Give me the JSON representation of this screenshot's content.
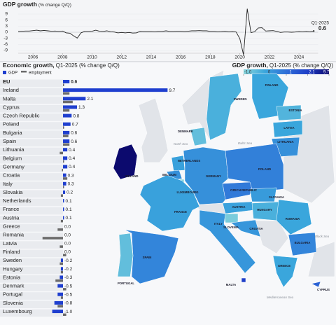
{
  "chart_data": [
    {
      "type": "line",
      "title": "GDP growth",
      "subtitle": "(% change Q/Q)",
      "color": "#222222",
      "x": [
        2005,
        2005.25,
        2005.5,
        2005.75,
        2006,
        2006.25,
        2006.5,
        2006.75,
        2007,
        2007.25,
        2007.5,
        2007.75,
        2008,
        2008.25,
        2008.5,
        2008.75,
        2009,
        2009.25,
        2009.5,
        2009.75,
        2010,
        2010.25,
        2010.5,
        2010.75,
        2011,
        2011.25,
        2011.5,
        2011.75,
        2012,
        2012.25,
        2012.5,
        2012.75,
        2013,
        2013.25,
        2013.5,
        2013.75,
        2014,
        2014.25,
        2014.5,
        2014.75,
        2015,
        2015.25,
        2015.5,
        2015.75,
        2016,
        2016.25,
        2016.5,
        2016.75,
        2017,
        2017.25,
        2017.5,
        2017.75,
        2018,
        2018.25,
        2018.5,
        2018.75,
        2019,
        2019.25,
        2019.5,
        2019.75,
        2020,
        2020.25,
        2020.5,
        2020.75,
        2021,
        2021.25,
        2021.5,
        2021.75,
        2022,
        2022.25,
        2022.5,
        2022.75,
        2023,
        2023.25,
        2023.5,
        2023.75,
        2024,
        2024.25,
        2024.5,
        2024.75,
        2025
      ],
      "values": [
        0.4,
        0.5,
        0.6,
        0.6,
        0.8,
        1.0,
        0.7,
        0.9,
        0.7,
        0.5,
        0.6,
        0.4,
        0.6,
        -0.3,
        -0.5,
        -1.8,
        -2.9,
        -0.3,
        0.4,
        0.4,
        0.5,
        1.0,
        0.5,
        0.4,
        0.7,
        0.2,
        0.1,
        -0.3,
        -0.1,
        -0.3,
        -0.1,
        -0.4,
        -0.3,
        0.4,
        0.3,
        0.3,
        0.3,
        0.2,
        0.4,
        0.4,
        0.7,
        0.4,
        0.4,
        0.5,
        0.5,
        0.3,
        0.5,
        0.7,
        0.7,
        0.8,
        0.7,
        0.7,
        0.4,
        0.4,
        0.2,
        0.3,
        0.5,
        0.2,
        0.3,
        0.1,
        -3.2,
        -11.2,
        11.6,
        -0.2,
        0.2,
        2.1,
        2.2,
        0.6,
        0.7,
        0.8,
        0.4,
        -0.1,
        0.1,
        0.1,
        0.0,
        0.1,
        0.3,
        0.2,
        0.4,
        0.2,
        0.6
      ],
      "xlim": [
        2005,
        2025.3
      ],
      "xticks": [
        2006,
        2008,
        2010,
        2012,
        2014,
        2016,
        2018,
        2020,
        2022,
        2024
      ],
      "ylim": [
        -9,
        9
      ],
      "yticks": [
        9,
        6,
        3,
        0,
        -3,
        -6,
        -9
      ],
      "annotation": "Q1-2025"
    },
    {
      "type": "bar",
      "orientation": "horizontal",
      "title": "Economic growth,",
      "subtitle": "Q1-2025 (% change Q/Q)",
      "categories": [
        "EU",
        "Ireland",
        "Malta",
        "Cyprus",
        "Czech Republic",
        "Poland",
        "Bulgaria",
        "Spain",
        "Lithuania",
        "Belgium",
        "Germany",
        "Croatia",
        "Italy",
        "Slovakia",
        "Netherlands",
        "France",
        "Austria",
        "Greece",
        "Romania",
        "Latvia",
        "Finland",
        "Sweden",
        "Hungary",
        "Estonia",
        "Denmark",
        "Portugal",
        "Slovenia",
        "Luxembourg"
      ],
      "series": [
        {
          "name": "GDP",
          "color": "#1f3fcf",
          "values": [
            0.6,
            9.7,
            2.1,
            1.3,
            0.8,
            0.7,
            0.6,
            0.6,
            0.4,
            0.4,
            0.4,
            0.3,
            0.3,
            0.2,
            0.1,
            0.1,
            0.1,
            0.0,
            0.0,
            0.0,
            0.0,
            -0.2,
            -0.2,
            -0.3,
            -0.5,
            -0.5,
            -0.8,
            -1.0
          ],
          "value_labels": [
            "0.6",
            "9.7",
            "2.1",
            "1.3",
            "0.8",
            "0.7",
            "0.6",
            "0.6",
            "0.4",
            "0.4",
            "0.4",
            "0.3",
            "0.3",
            "0.2",
            "0.1",
            "0.1",
            "0.1",
            "0.0",
            "0.0",
            "0.0",
            "0.0",
            "-0.2",
            "-0.2",
            "-0.3",
            "-0.5",
            "-0.5",
            "-0.8",
            "-1.0"
          ]
        },
        {
          "name": "employment",
          "color": "#6b6b6b",
          "values": [
            0.1,
            0.6,
            0.9,
            0.6,
            0.0,
            0.1,
            0.5,
            0.6,
            -0.3,
            0.1,
            -0.1,
            0.4,
            0.1,
            -0.2,
            0.0,
            0.0,
            -0.2,
            -0.5,
            -1.9,
            -0.3,
            0.3,
            -0.3,
            -0.2,
            -0.7,
            0.3,
            -0.2,
            -0.5,
            0.3
          ]
        }
      ]
    },
    {
      "type": "map",
      "title": "GDP growth,",
      "subtitle": "Q1-2025 (% change Q/Q)",
      "scale_ticks": [
        {
          "value": -1,
          "label": "-1.0"
        },
        0,
        1,
        2.1,
        9.7
      ],
      "scale_colors": [
        "#8ad6dc",
        "#3aa6dc",
        "#2f6fd8",
        "#1f3fc8",
        "#0c0a6e"
      ],
      "regions": [
        {
          "label": "FINLAND",
          "value": 0.0
        },
        {
          "label": "SWEDEN",
          "value": -0.2
        },
        {
          "label": "ESTONIA",
          "value": -0.3
        },
        {
          "label": "LATVIA",
          "value": 0.0
        },
        {
          "label": "LITHUANIA",
          "value": 0.4
        },
        {
          "label": "DENMARK",
          "value": -0.5
        },
        {
          "label": "IRELAND",
          "value": 9.7
        },
        {
          "label": "NETHERLANDS",
          "value": 0.1
        },
        {
          "label": "BELGIUM",
          "value": 0.4
        },
        {
          "label": "LUXEMBOURG",
          "value": -1.0
        },
        {
          "label": "GERMANY",
          "value": 0.4
        },
        {
          "label": "POLAND",
          "value": 0.7
        },
        {
          "label": "CZECH REPUBLIC",
          "value": 0.8
        },
        {
          "label": "SLOVAKIA",
          "value": 0.2
        },
        {
          "label": "FRANCE",
          "value": 0.1
        },
        {
          "label": "AUSTRIA",
          "value": 0.1
        },
        {
          "label": "HUNGARY",
          "value": -0.2
        },
        {
          "label": "ROMANIA",
          "value": 0.0
        },
        {
          "label": "SLOVENIA",
          "value": -0.8
        },
        {
          "label": "CROATIA",
          "value": 0.3
        },
        {
          "label": "ITALY",
          "value": 0.3
        },
        {
          "label": "BULGARIA",
          "value": 0.6
        },
        {
          "label": "SPAIN",
          "value": 0.6
        },
        {
          "label": "PORTUGAL",
          "value": -0.5
        },
        {
          "label": "GREECE",
          "value": 0.0
        },
        {
          "label": "MALTA",
          "value": 2.1
        },
        {
          "label": "CYPRUS",
          "value": 1.3
        }
      ],
      "seas": [
        "North Sea",
        "Baltic Sea",
        "Black Sea",
        "Mediterranean Sea"
      ]
    }
  ]
}
